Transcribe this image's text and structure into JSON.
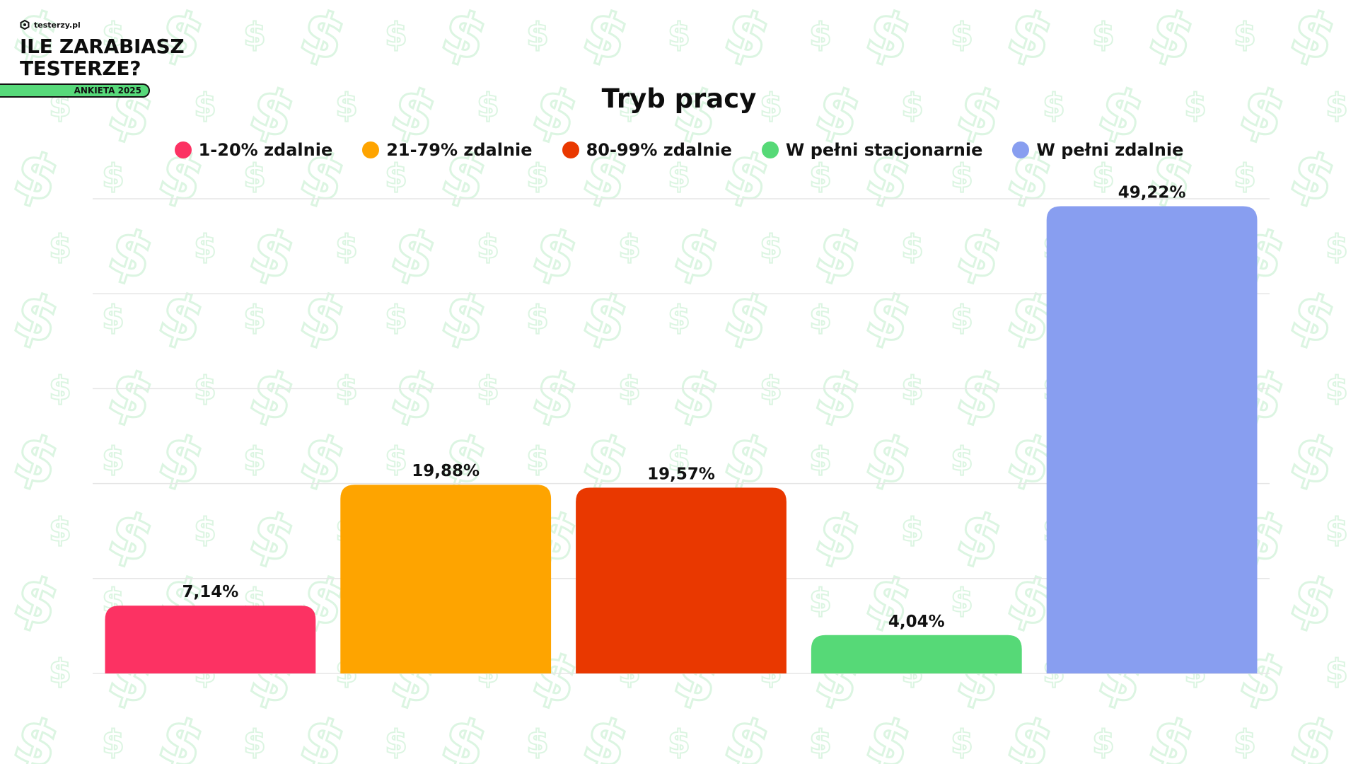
{
  "brand": {
    "site": "testerzy.pl",
    "title": "ILE ZARABIASZ\nTESTERZE?",
    "badge": "ANKIETA 2025"
  },
  "colors": {
    "background": "#ffffff",
    "pattern": "#dcf5e2",
    "grid": "#e6e6e6"
  },
  "chart_data": {
    "type": "bar",
    "title": "Tryb pracy",
    "xlabel": "",
    "ylabel": "",
    "ylim": [
      0,
      50
    ],
    "grid": true,
    "legend_placement": "top",
    "categories": [
      "1-20% zdalnie",
      "21-79% zdalnie",
      "80-99% zdalnie",
      "W pełni stacjonarnie",
      "W pełni zdalnie"
    ],
    "values": [
      7.14,
      19.88,
      19.57,
      4.04,
      49.22
    ],
    "value_labels": [
      "7,14%",
      "19,88%",
      "19,57%",
      "4,04%",
      "49,22%"
    ],
    "colors": [
      "#fc3263",
      "#fea400",
      "#e93800",
      "#56d977",
      "#889ef0"
    ]
  }
}
